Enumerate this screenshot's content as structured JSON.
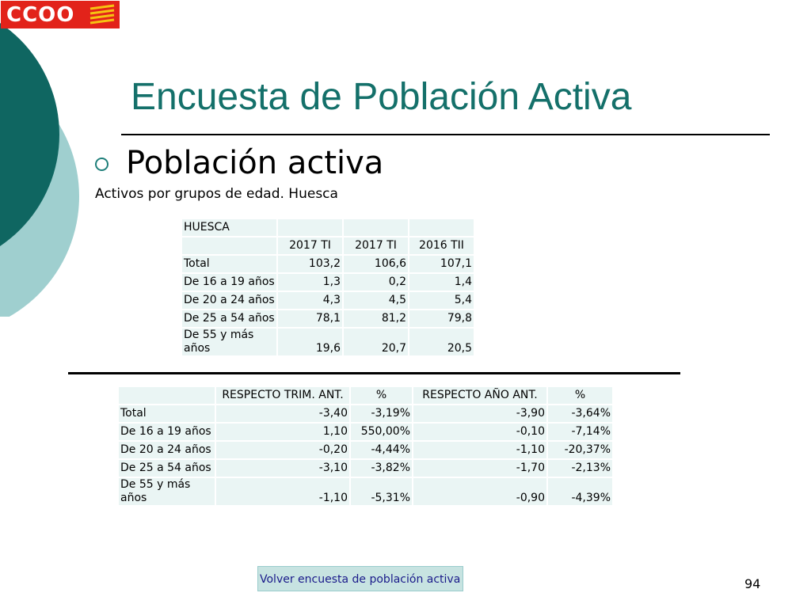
{
  "logo": {
    "text": "CCOO"
  },
  "slide": {
    "title": "Encuesta de Población Activa",
    "heading": "Población activa",
    "subtitle": "Activos por grupos de edad. Huesca",
    "number": "94",
    "link": "Volver encuesta de población activa"
  },
  "table1": {
    "region": "HUESCA",
    "columns": [
      "2017 TI",
      "2017 TI",
      "2016 TII"
    ],
    "rows": [
      {
        "label": "Total",
        "values": [
          "103,2",
          "106,6",
          "107,1"
        ]
      },
      {
        "label": "De 16 a 19 años",
        "values": [
          "1,3",
          "0,2",
          "1,4"
        ]
      },
      {
        "label": "De 20 a 24 años",
        "values": [
          "4,3",
          "4,5",
          "5,4"
        ]
      },
      {
        "label": "De 25 a 54 años",
        "values": [
          "78,1",
          "81,2",
          "79,8"
        ]
      },
      {
        "label_line1": "De 55 y más",
        "label_line2": "años",
        "values": [
          "19,6",
          "20,7",
          "20,5"
        ]
      }
    ]
  },
  "table2": {
    "columns": [
      "RESPECTO TRIM. ANT.",
      "%",
      "RESPECTO AÑO ANT.",
      "%"
    ],
    "rows": [
      {
        "label": "Total",
        "values": [
          "-3,40",
          "-3,19%",
          "-3,90",
          "-3,64%"
        ]
      },
      {
        "label": "De 16 a 19 años",
        "values": [
          "1,10",
          "550,00%",
          "-0,10",
          "-7,14%"
        ]
      },
      {
        "label": "De 20 a 24 años",
        "values": [
          "-0,20",
          "-4,44%",
          "-1,10",
          "-20,37%"
        ]
      },
      {
        "label": "De 25 a 54 años",
        "values": [
          "-3,10",
          "-3,82%",
          "-1,70",
          "-2,13%"
        ]
      },
      {
        "label_line1": "De 55 y más",
        "label_line2": "años",
        "values": [
          "-1,10",
          "-5,31%",
          "-0,90",
          "-4,39%"
        ]
      }
    ]
  },
  "colors": {
    "title": "#14706a",
    "circle_dark": "#0f6661",
    "circle_light": "#9fcfcf",
    "cell_bg": "#eaf5f4",
    "logo_red": "#e2231a"
  }
}
